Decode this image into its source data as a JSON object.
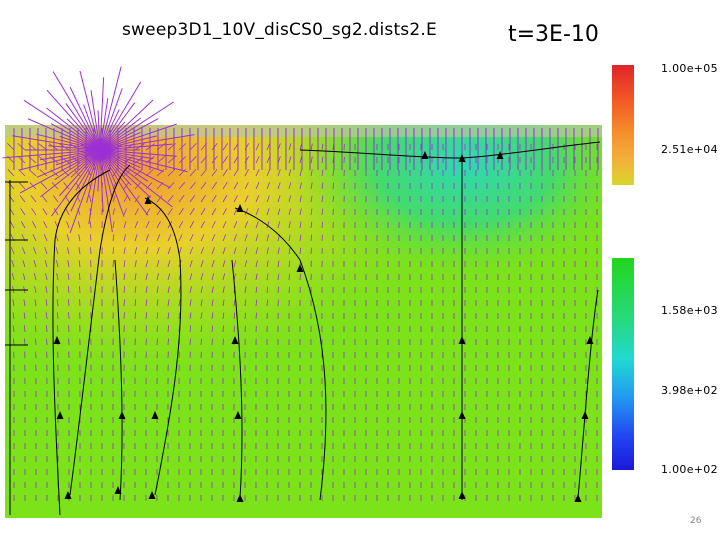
{
  "title": "sweep3D1_10V_disCS0_sg2.dists2.E",
  "time_label": "t=3E-10",
  "colorbar_labels": [
    "1.00e+05",
    "2.51e+04",
    "1.58e+03",
    "3.98e+02",
    "1.00e+02"
  ],
  "page_number": "26",
  "colors": {
    "field_green": "#7ce21a",
    "hot_yellow": "#eedc2a",
    "hot_orange": "#f2a632",
    "cool_cyan": "#3ad8a2",
    "arrow_purple": "#9b30d4",
    "streamline": "#000000"
  }
}
